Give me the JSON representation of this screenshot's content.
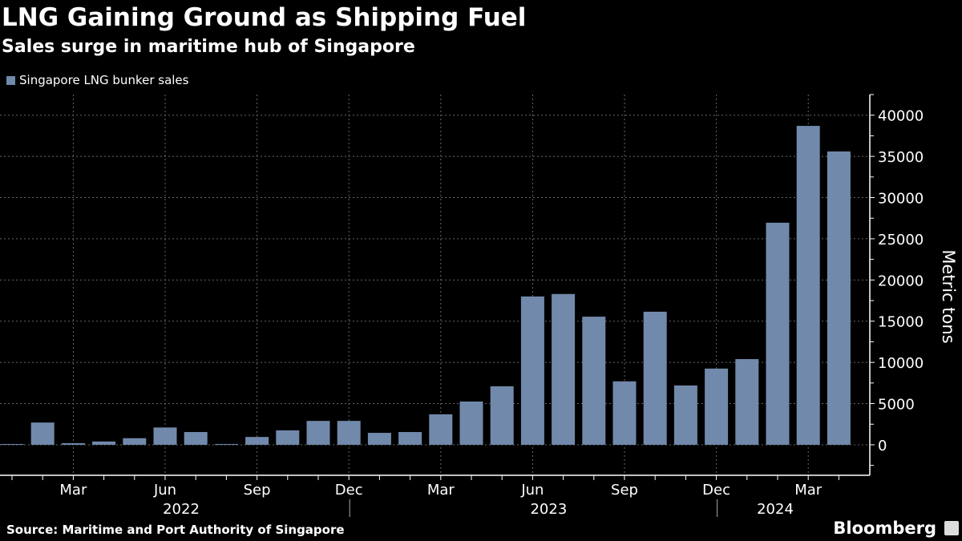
{
  "header": {
    "title": "LNG Gaining Ground as Shipping Fuel",
    "subtitle": "Sales surge in maritime hub of Singapore"
  },
  "footer": {
    "source": "Source: Maritime and Port Authority of Singapore",
    "brand": "Bloomberg"
  },
  "colors": {
    "bar": "#7189ab",
    "background": "#000000",
    "grid": "#666666"
  },
  "chart_data": {
    "type": "bar",
    "title": "LNG Gaining Ground as Shipping Fuel",
    "subtitle": "Sales surge in maritime hub of Singapore",
    "ylabel": "Metric tons",
    "ylim": [
      -3700,
      42500
    ],
    "yticks": [
      0,
      5000,
      10000,
      15000,
      20000,
      25000,
      30000,
      35000,
      40000
    ],
    "grid": true,
    "legend_position": "top-left",
    "y_axis_side": "right",
    "x_tick_labels": [
      {
        "label": "Mar",
        "month": "2022-03"
      },
      {
        "label": "Jun",
        "month": "2022-06"
      },
      {
        "label": "Sep",
        "month": "2022-09"
      },
      {
        "label": "Dec",
        "month": "2022-12"
      },
      {
        "label": "Mar",
        "month": "2023-03"
      },
      {
        "label": "Jun",
        "month": "2023-06"
      },
      {
        "label": "Sep",
        "month": "2023-09"
      },
      {
        "label": "Dec",
        "month": "2023-12"
      },
      {
        "label": "Mar",
        "month": "2024-03"
      }
    ],
    "year_labels": [
      {
        "label": "2022",
        "month": "2022-06"
      },
      {
        "label": "2023",
        "month": "2023-06"
      },
      {
        "label": "2024",
        "month": "2024-02"
      }
    ],
    "series": [
      {
        "name": "Singapore LNG bunker sales",
        "x": [
          "2022-01",
          "2022-02",
          "2022-03",
          "2022-04",
          "2022-05",
          "2022-06",
          "2022-07",
          "2022-08",
          "2022-09",
          "2022-10",
          "2022-11",
          "2022-12",
          "2023-01",
          "2023-02",
          "2023-03",
          "2023-04",
          "2023-05",
          "2023-06",
          "2023-07",
          "2023-08",
          "2023-09",
          "2023-10",
          "2023-11",
          "2023-12",
          "2024-01",
          "2024-02",
          "2024-03",
          "2024-04"
        ],
        "values": [
          50,
          2700,
          200,
          400,
          800,
          2100,
          1550,
          30,
          950,
          1750,
          2900,
          2900,
          1450,
          1550,
          3700,
          5250,
          7100,
          18000,
          18300,
          15550,
          7700,
          16150,
          7200,
          9250,
          10400,
          26950,
          38700,
          35600
        ]
      }
    ]
  }
}
